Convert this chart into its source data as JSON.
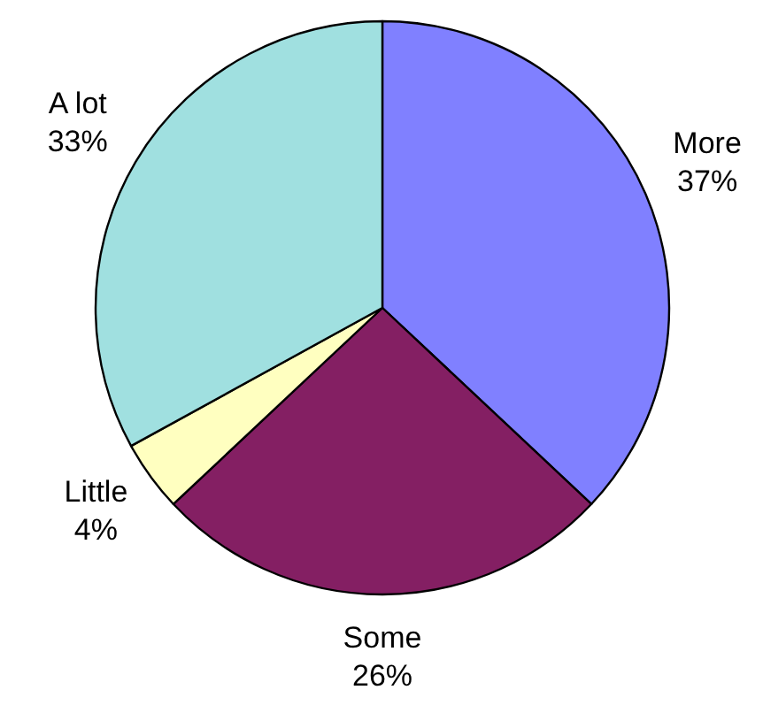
{
  "chart_data": {
    "type": "pie",
    "categories": [
      "More",
      "Some",
      "Little",
      "A lot"
    ],
    "values": [
      37,
      26,
      4,
      33
    ],
    "value_labels": [
      "37%",
      "26%",
      "4%",
      "33%"
    ],
    "colors": [
      "#8080ff",
      "#841f63",
      "#ffffc0",
      "#a0e0e0"
    ]
  }
}
